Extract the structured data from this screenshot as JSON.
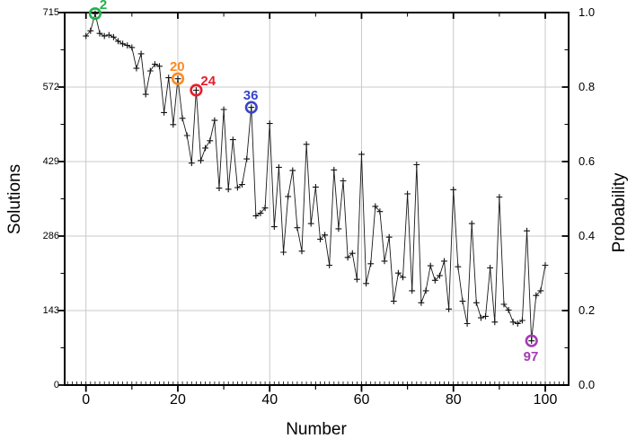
{
  "chart_data": {
    "type": "line",
    "marker": "plus",
    "title": "",
    "xlabel": "Number",
    "ylabel_left": "Solutions",
    "ylabel_right": "Probability",
    "x_ticks": [
      0,
      20,
      40,
      60,
      80,
      100
    ],
    "x_minor_tick_step": 1,
    "y_left_ticks": [
      0,
      143,
      286,
      429,
      572,
      715
    ],
    "y_right_ticks": [
      "0.0",
      "0.2",
      "0.4",
      "0.6",
      "0.8",
      "1.0"
    ],
    "y_left_max": 715,
    "x_range": [
      -5,
      105
    ],
    "y_range": [
      0,
      715
    ],
    "grid": true,
    "legend": "none",
    "right_axis_relation": "probability = solutions / 715",
    "x_start": 0,
    "solutions": [
      670,
      680,
      713,
      675,
      670,
      672,
      668,
      660,
      655,
      652,
      648,
      608,
      636,
      558,
      603,
      616,
      612,
      523,
      590,
      500,
      588,
      512,
      479,
      426,
      566,
      431,
      455,
      469,
      508,
      378,
      529,
      376,
      471,
      379,
      385,
      434,
      533,
      325,
      330,
      340,
      502,
      304,
      418,
      255,
      362,
      412,
      302,
      257,
      462,
      310,
      380,
      280,
      288,
      230,
      413,
      300,
      392,
      245,
      253,
      203,
      443,
      195,
      233,
      343,
      333,
      238,
      284,
      161,
      215,
      207,
      367,
      181,
      423,
      158,
      181,
      229,
      201,
      210,
      238,
      146,
      375,
      227,
      161,
      118,
      310,
      158,
      129,
      132,
      225,
      121,
      361,
      155,
      144,
      121,
      118,
      124,
      296,
      85,
      172,
      181,
      230
    ],
    "highlights": [
      {
        "n": 2,
        "label": "2",
        "value": 713,
        "color": "#22b14c",
        "label_pos": "above-right"
      },
      {
        "n": 20,
        "label": "20",
        "value": 588,
        "color": "#ff8a1e",
        "label_pos": "above"
      },
      {
        "n": 24,
        "label": "24",
        "value": 566,
        "color": "#e91c2c",
        "label_pos": "above-right"
      },
      {
        "n": 36,
        "label": "36",
        "value": 533,
        "color": "#3744c6",
        "label_pos": "above"
      },
      {
        "n": 97,
        "label": "97",
        "value": 85,
        "color": "#a43bb3",
        "label_pos": "below"
      }
    ],
    "colors": {
      "line": "#1a1a1a",
      "marker": "#111111",
      "grid": "#c9c9c9",
      "axis": "#000000",
      "background": "#ffffff"
    }
  }
}
